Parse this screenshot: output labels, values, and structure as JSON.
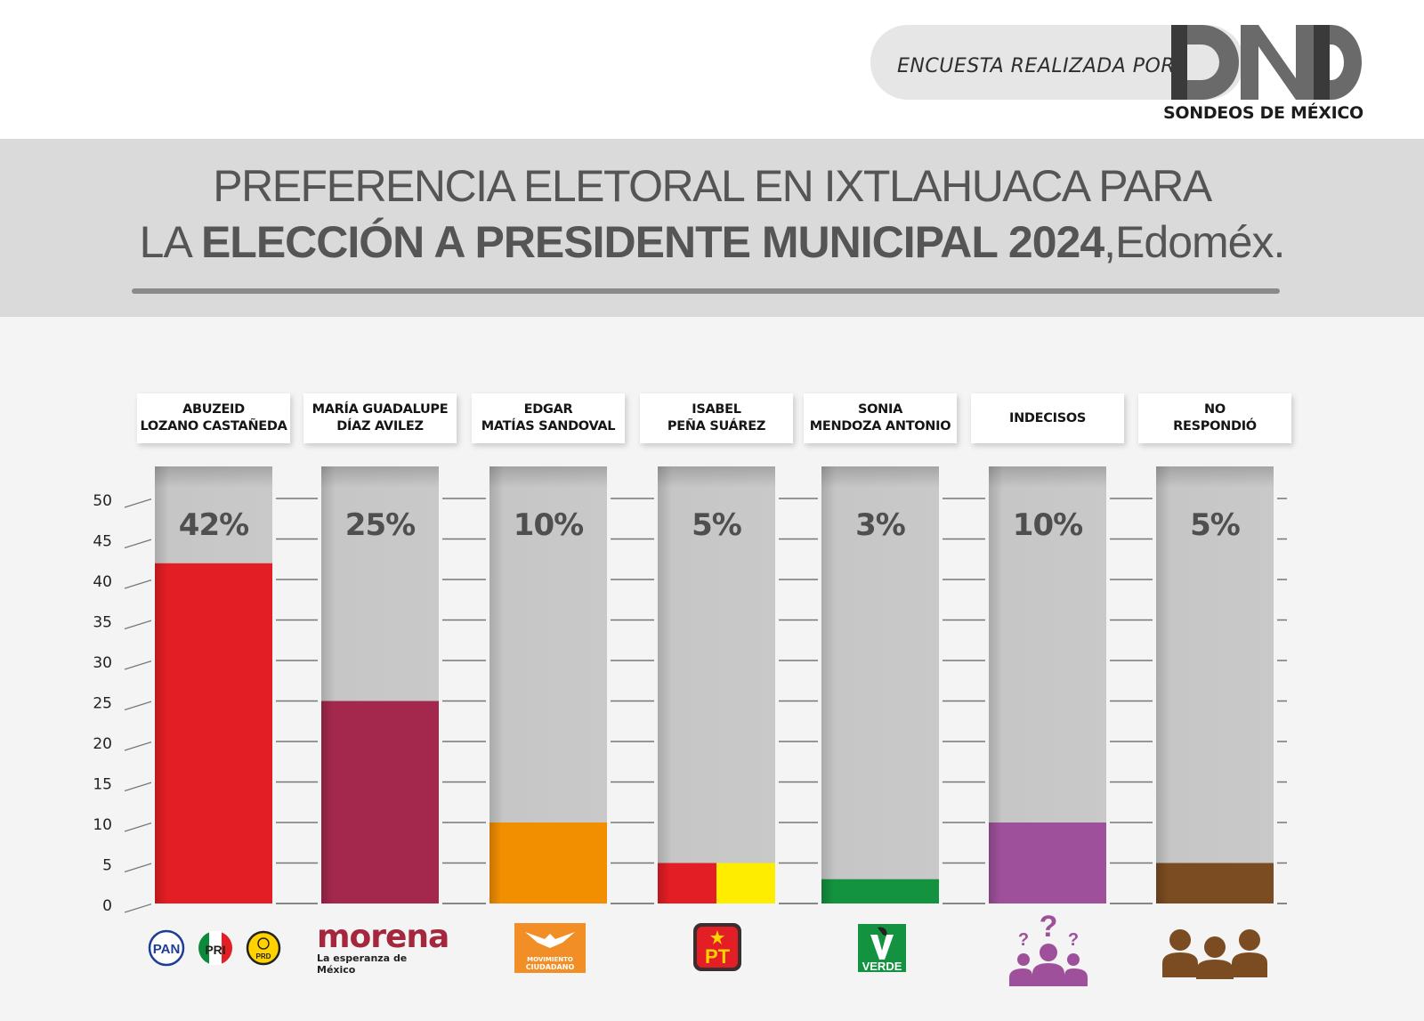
{
  "header": {
    "brand_prefix": "ENCUESTA REALIZADA POR",
    "brand_logo": "DND",
    "brand_sub": "SONDEOS DE MÉXICO"
  },
  "title": {
    "line1": "PREFERENCIA ELETORAL EN IXTLAHUACA PARA",
    "line2_pre": "LA ",
    "line2_bold": "ELECCIÓN A PRESIDENTE MUNICIPAL 2024",
    "line2_post": ",Edoméx."
  },
  "chart_data": {
    "type": "bar",
    "title": "PREFERENCIA ELETORAL EN IXTLAHUACA PARA LA ELECCIÓN A PRESIDENTE MUNICIPAL 2024, Edoméx.",
    "xlabel": "",
    "ylabel": "",
    "ylim": [
      0,
      50
    ],
    "yticks": [
      0,
      5,
      10,
      15,
      20,
      25,
      30,
      35,
      40,
      45,
      50
    ],
    "grid": true,
    "categories": [
      "ABUZEID\nLOZANO CASTAÑEDA",
      "MARÍA GUADALUPE\nDÍAZ AVILEZ",
      "EDGAR\nMATÍAS SANDOVAL",
      "ISABEL\nPEÑA SUÁREZ",
      "SONIA\nMENDOZA ANTONIO",
      "INDECISOS",
      "NO\nRESPONDIÓ"
    ],
    "values": [
      42,
      25,
      10,
      5,
      3,
      10,
      5
    ],
    "value_labels": [
      "42%",
      "25%",
      "10%",
      "5%",
      "3%",
      "10%",
      "5%"
    ],
    "bar_colors": [
      [
        "#e31e24"
      ],
      [
        "#a4284d"
      ],
      [
        "#f18f01"
      ],
      [
        "#e31e24",
        "#ffed00"
      ],
      [
        "#13923f"
      ],
      [
        "#9e519a"
      ],
      [
        "#7b4b21"
      ]
    ],
    "parties": [
      [
        "PAN",
        "PRI",
        "PRD"
      ],
      [
        "morena"
      ],
      [
        "MOVIMIENTO CIUDADANO"
      ],
      [
        "PT"
      ],
      [
        "VERDE"
      ],
      [
        "undecided-people-icon"
      ],
      [
        "no-answer-people-icon"
      ]
    ]
  },
  "logos": {
    "pan": "PAN",
    "pri": "PRI",
    "prd": "PRD",
    "morena_main": "morena",
    "morena_sub": "La esperanza de México",
    "mc_line1": "MOVIMIENTO",
    "mc_line2": "CIUDADANO",
    "pt": "PT",
    "verde": "VERDE"
  },
  "colors": {
    "track": "#c8c8c8",
    "value_text": "#4f4f4f",
    "axis_text": "#222222",
    "grid": "#777777"
  }
}
